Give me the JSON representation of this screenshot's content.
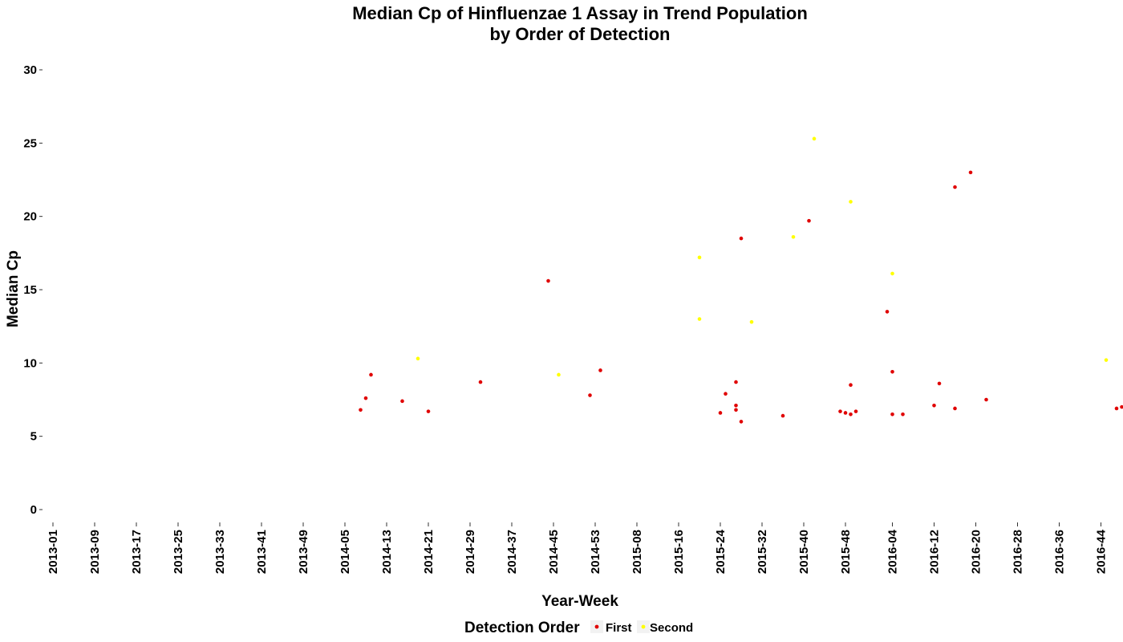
{
  "chart_data": {
    "type": "scatter",
    "title": [
      "Median Cp of Hinfluenzae 1 Assay in Trend Population",
      "by Order of Detection"
    ],
    "xlabel": "Year-Week",
    "ylabel": "Median Cp",
    "ylim": [
      0,
      30
    ],
    "yticks": [
      0,
      5,
      10,
      15,
      20,
      25,
      30
    ],
    "x_categories": [
      "2013-01",
      "2013-09",
      "2013-17",
      "2013-25",
      "2013-33",
      "2013-41",
      "2013-49",
      "2014-05",
      "2014-13",
      "2014-21",
      "2014-29",
      "2014-37",
      "2014-45",
      "2014-53",
      "2015-08",
      "2015-16",
      "2015-24",
      "2015-32",
      "2015-40",
      "2015-48",
      "2016-04",
      "2016-12",
      "2016-20",
      "2016-28",
      "2016-36",
      "2016-44"
    ],
    "grid": false,
    "legend": {
      "title": "Detection Order",
      "position": "bottom",
      "entries": [
        {
          "name": "First",
          "color": "#e00000"
        },
        {
          "name": "Second",
          "color": "#ffff00"
        }
      ]
    },
    "series": [
      {
        "name": "First",
        "color": "#e00000",
        "points": [
          {
            "x": "2014-08",
            "y": 6.8
          },
          {
            "x": "2014-09",
            "y": 7.6
          },
          {
            "x": "2014-10",
            "y": 9.2
          },
          {
            "x": "2014-16",
            "y": 7.4
          },
          {
            "x": "2014-21",
            "y": 6.7
          },
          {
            "x": "2014-31",
            "y": 8.7
          },
          {
            "x": "2014-44",
            "y": 15.6
          },
          {
            "x": "2014-52",
            "y": 7.8
          },
          {
            "x": "2015-01",
            "y": 9.5
          },
          {
            "x": "2015-24",
            "y": 6.6
          },
          {
            "x": "2015-25",
            "y": 7.9
          },
          {
            "x": "2015-27",
            "y": 8.7
          },
          {
            "x": "2015-27",
            "y": 7.1
          },
          {
            "x": "2015-27",
            "y": 6.8
          },
          {
            "x": "2015-28",
            "y": 6.0
          },
          {
            "x": "2015-28",
            "y": 18.5
          },
          {
            "x": "2015-36",
            "y": 6.4
          },
          {
            "x": "2015-41",
            "y": 19.7
          },
          {
            "x": "2015-47",
            "y": 6.7
          },
          {
            "x": "2015-48",
            "y": 6.6
          },
          {
            "x": "2015-49",
            "y": 6.5
          },
          {
            "x": "2015-49",
            "y": 8.5
          },
          {
            "x": "2015-50",
            "y": 6.7
          },
          {
            "x": "2016-03",
            "y": 13.5
          },
          {
            "x": "2016-04",
            "y": 9.4
          },
          {
            "x": "2016-04",
            "y": 6.5
          },
          {
            "x": "2016-06",
            "y": 6.5
          },
          {
            "x": "2016-12",
            "y": 7.1
          },
          {
            "x": "2016-13",
            "y": 8.6
          },
          {
            "x": "2016-16",
            "y": 22.0
          },
          {
            "x": "2016-16",
            "y": 6.9
          },
          {
            "x": "2016-19",
            "y": 23.0
          },
          {
            "x": "2016-22",
            "y": 7.5
          },
          {
            "x": "2016-47",
            "y": 6.9
          },
          {
            "x": "2016-48",
            "y": 7.0
          }
        ]
      },
      {
        "name": "Second",
        "color": "#ffff00",
        "points": [
          {
            "x": "2014-19",
            "y": 10.3
          },
          {
            "x": "2014-46",
            "y": 9.2
          },
          {
            "x": "2015-20",
            "y": 17.2
          },
          {
            "x": "2015-20",
            "y": 13.0
          },
          {
            "x": "2015-30",
            "y": 12.8
          },
          {
            "x": "2015-38",
            "y": 18.6
          },
          {
            "x": "2015-42",
            "y": 25.3
          },
          {
            "x": "2015-49",
            "y": 21.0
          },
          {
            "x": "2016-04",
            "y": 16.1
          },
          {
            "x": "2016-45",
            "y": 10.2
          }
        ]
      }
    ]
  }
}
